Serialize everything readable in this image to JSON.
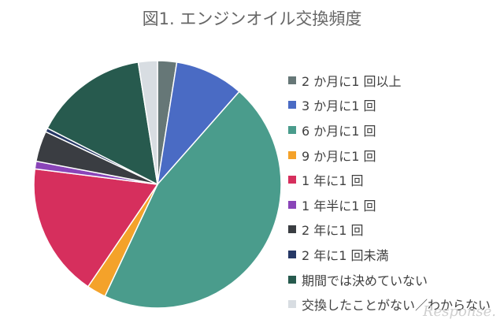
{
  "chart_data": {
    "type": "pie",
    "title": "図1. エンジンオイル交換頻度",
    "legend_position": "right",
    "categories": [
      "2 か月に1 回以上",
      "3 か月に1 回",
      "6 か月に1 回",
      "9 か月に1 回",
      "1 年に1 回",
      "1 年半に1 回",
      "2 年に1 回",
      "2 年に1 回未満",
      "期間では決めていない",
      "交換したことがない／わからない"
    ],
    "values": [
      2.5,
      9.0,
      45.5,
      2.5,
      17.5,
      1.0,
      4.0,
      0.5,
      15.0,
      2.5
    ],
    "colors": [
      "#667777",
      "#4a6bc4",
      "#4a9c8c",
      "#f4a22a",
      "#d62f5d",
      "#8a45b8",
      "#3a3d42",
      "#263866",
      "#275a4e",
      "#d8dde2"
    ]
  },
  "watermark": "Response."
}
